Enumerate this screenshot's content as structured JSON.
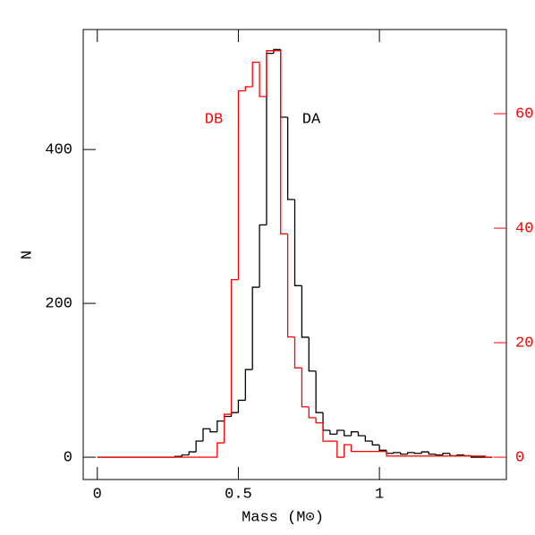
{
  "chart_data": {
    "type": "histogram",
    "xlabel": "Mass (M⊙)",
    "ylabel": "N",
    "bins": [
      0,
      0.025,
      0.05,
      0.075,
      0.1,
      0.125,
      0.15,
      0.175,
      0.2,
      0.225,
      0.25,
      0.275,
      0.3,
      0.325,
      0.35,
      0.375,
      0.4,
      0.425,
      0.45,
      0.475,
      0.5,
      0.525,
      0.55,
      0.575,
      0.6,
      0.625,
      0.65,
      0.675,
      0.7,
      0.725,
      0.75,
      0.775,
      0.8,
      0.825,
      0.85,
      0.875,
      0.9,
      0.925,
      0.95,
      0.975,
      1,
      1.025,
      1.05,
      1.075,
      1.1,
      1.125,
      1.15,
      1.175,
      1.2,
      1.225,
      1.25,
      1.275,
      1.3,
      1.325,
      1.35,
      1.375,
      1.4
    ],
    "series": [
      {
        "name": "DA",
        "color": "#000000",
        "axis": "y",
        "values": [
          0,
          0,
          0,
          0,
          0,
          0,
          0,
          0,
          0,
          0,
          0,
          1,
          3,
          7,
          21,
          37,
          33,
          47,
          53,
          58,
          74,
          114,
          221,
          302,
          525,
          530,
          442,
          335,
          223,
          156,
          112,
          58,
          35,
          30,
          35,
          28,
          33,
          28,
          21,
          16,
          9,
          5,
          6,
          4,
          6,
          5,
          7,
          4,
          3,
          5,
          2,
          3,
          2,
          0,
          0,
          0
        ]
      },
      {
        "name": "DB",
        "color": "#ff0000",
        "axis": "y2",
        "values": [
          0,
          0,
          0,
          0,
          0,
          0,
          0,
          0,
          0,
          0,
          0,
          0,
          0,
          0,
          0,
          0,
          0,
          2.5,
          7.5,
          31,
          64,
          64.7,
          69,
          63,
          71,
          71,
          39,
          21,
          15.6,
          8.8,
          6.9,
          6,
          2.8,
          2.8,
          0,
          2.2,
          1,
          1,
          1,
          1,
          1,
          0.2,
          0.2,
          0.2,
          0.2,
          0.2,
          0.2,
          0.2,
          0.2,
          0.2,
          0.2,
          0.2,
          0.2,
          0.2,
          0.2,
          0
        ]
      }
    ],
    "xlim": [
      -0.05,
      1.45
    ],
    "xticks": [
      0,
      0.5,
      1
    ],
    "ylim": [
      -29,
      556
    ],
    "yticks": [
      0,
      200,
      400
    ],
    "y2lim": [
      -3.9,
      74.7
    ],
    "y2ticks": [
      0,
      20,
      40,
      60
    ],
    "y2color": "#ff0000"
  }
}
